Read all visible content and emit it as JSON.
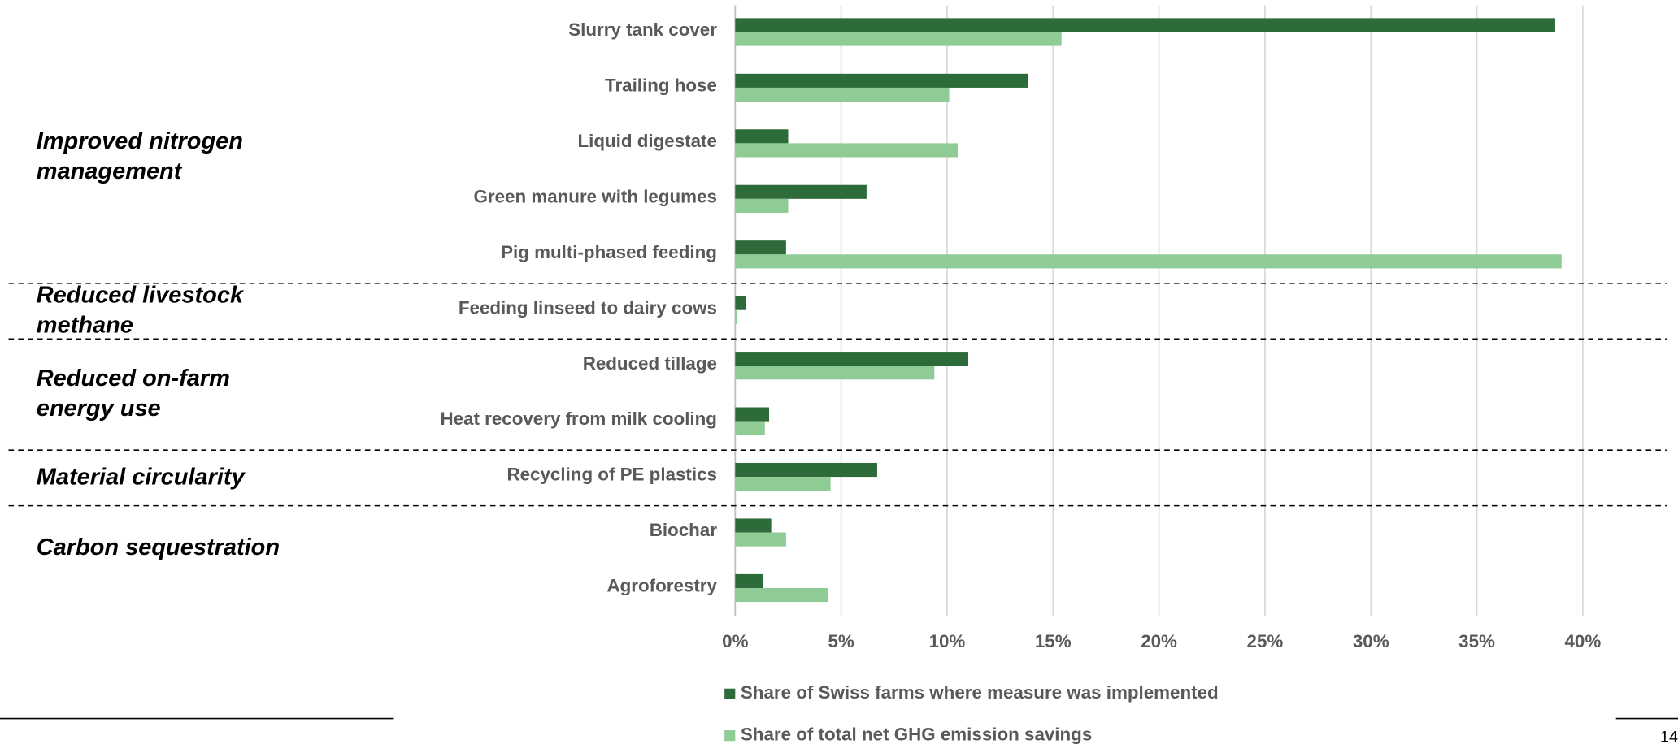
{
  "chart_data": {
    "type": "bar",
    "orientation": "horizontal",
    "categories": [
      "Slurry tank cover",
      "Trailing hose",
      "Liquid digestate",
      "Green manure with legumes",
      "Pig multi-phased feeding",
      "Feeding linseed to dairy cows",
      "Reduced tillage",
      "Heat recovery from milk cooling",
      "Recycling of PE plastics",
      "Biochar",
      "Agroforestry"
    ],
    "series": [
      {
        "name": "Share of Swiss farms where measure was implemented",
        "color": "#2e6b3a",
        "values": [
          38.7,
          13.8,
          2.5,
          6.2,
          2.4,
          0.5,
          11.0,
          1.6,
          6.7,
          1.7,
          1.3
        ]
      },
      {
        "name": "Share of total net GHG emission savings",
        "color": "#8fcc95",
        "values": [
          15.4,
          10.1,
          10.5,
          2.5,
          39.0,
          0.1,
          9.4,
          1.4,
          4.5,
          2.4,
          4.4
        ]
      }
    ],
    "groups": [
      {
        "label": "Improved nitrogen management",
        "rows": [
          0,
          4
        ]
      },
      {
        "label": "Reduced livestock methane",
        "rows": [
          5,
          5
        ]
      },
      {
        "label": "Reduced on-farm energy use",
        "rows": [
          6,
          7
        ]
      },
      {
        "label": "Material circularity",
        "rows": [
          8,
          8
        ]
      },
      {
        "label": "Carbon sequestration",
        "rows": [
          9,
          10
        ]
      }
    ],
    "xlim": [
      0,
      40
    ],
    "xticks": [
      {
        "value": 0,
        "label": "0%"
      },
      {
        "value": 5,
        "label": "5%"
      },
      {
        "value": 10,
        "label": "10%"
      },
      {
        "value": 15,
        "label": "15%"
      },
      {
        "value": 20,
        "label": "20%"
      },
      {
        "value": 25,
        "label": "25%"
      },
      {
        "value": 30,
        "label": "30%"
      },
      {
        "value": 35,
        "label": "35%"
      },
      {
        "value": 40,
        "label": "40%"
      }
    ],
    "grid": true,
    "legend": "bottom",
    "page_number": "14"
  }
}
